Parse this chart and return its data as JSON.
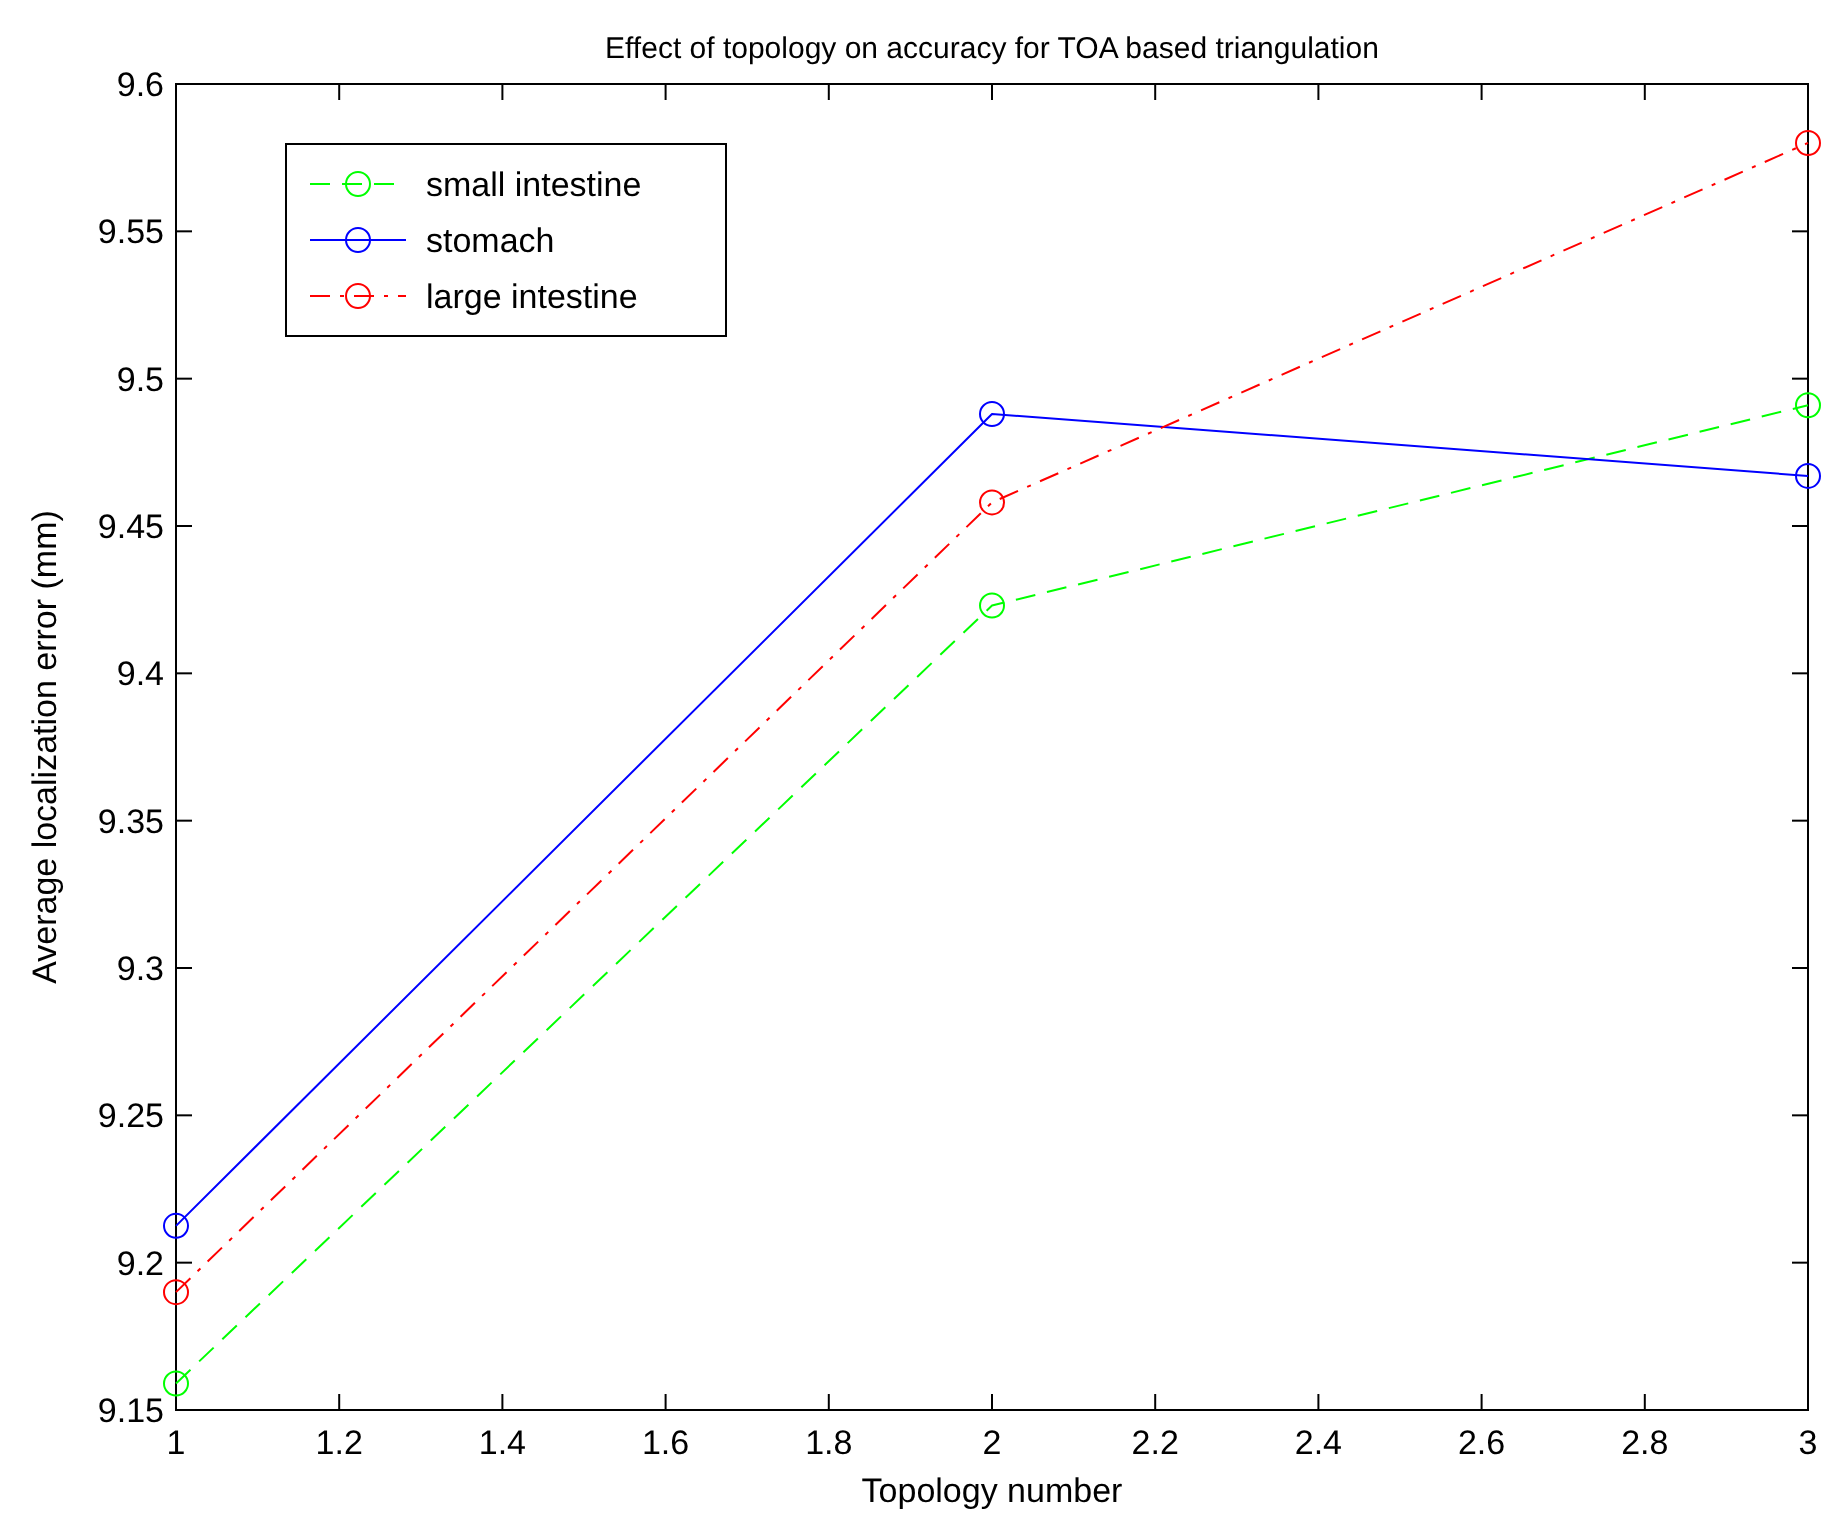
{
  "chart_data": {
    "type": "line",
    "title": "Effect of topology on accuracy for TOA based triangulation",
    "xlabel": "Topology number",
    "ylabel": "Average localization error (mm)",
    "x": [
      1,
      2,
      3
    ],
    "series": [
      {
        "name": "small intestine",
        "color": "#00ff00",
        "values": [
          9.159,
          9.423,
          9.491
        ],
        "line_style": "dashed"
      },
      {
        "name": "stomach",
        "color": "#0000ff",
        "values": [
          9.2125,
          9.488,
          9.467
        ],
        "line_style": "solid"
      },
      {
        "name": "large intestine",
        "color": "#ff0000",
        "values": [
          9.19,
          9.458,
          9.58
        ],
        "line_style": "dashdot"
      }
    ],
    "xlim": [
      1,
      3
    ],
    "xticks": [
      1,
      1.2,
      1.4,
      1.6,
      1.8,
      2,
      2.2,
      2.4,
      2.6,
      2.8,
      3
    ],
    "ylim": [
      9.15,
      9.6
    ],
    "yticks": [
      9.15,
      9.2,
      9.25,
      9.3,
      9.35,
      9.4,
      9.45,
      9.5,
      9.55,
      9.6
    ],
    "marker": "circle",
    "legend": "top left",
    "grid": false
  }
}
